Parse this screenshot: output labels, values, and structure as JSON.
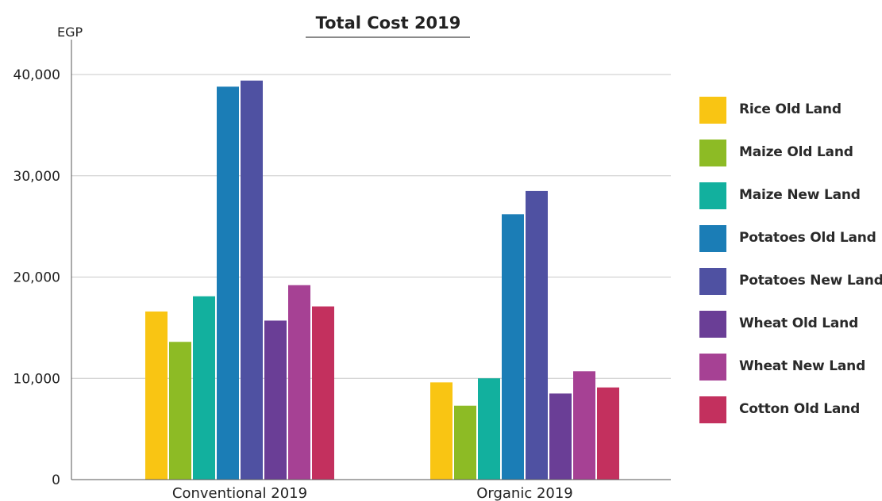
{
  "chart_data": {
    "type": "bar",
    "title": "Total Cost 2019",
    "ylabel": "EGP",
    "xlabel": "",
    "ylim": [
      0,
      40000
    ],
    "yticks": [
      0,
      10000,
      20000,
      30000,
      40000
    ],
    "ytick_labels": [
      "0",
      "10,000",
      "20,000",
      "30,000",
      "40,000"
    ],
    "grid": true,
    "legend_position": "right",
    "categories": [
      "Conventional 2019",
      "Organic 2019"
    ],
    "series": [
      {
        "name": "Rice Old Land",
        "color": "#F9C513",
        "values": [
          16600,
          9600
        ]
      },
      {
        "name": "Maize Old Land",
        "color": "#8DBB25",
        "values": [
          13600,
          7300
        ]
      },
      {
        "name": "Maize New Land",
        "color": "#12B09E",
        "values": [
          18100,
          10000
        ]
      },
      {
        "name": "Potatoes Old Land",
        "color": "#1B7DB6",
        "values": [
          38800,
          26200
        ]
      },
      {
        "name": "Potatoes New Land",
        "color": "#4F51A2",
        "values": [
          39400,
          28500
        ]
      },
      {
        "name": "Wheat Old Land",
        "color": "#6A3E96",
        "values": [
          15700,
          8500
        ]
      },
      {
        "name": "Wheat New Land",
        "color": "#A64194",
        "values": [
          19200,
          10700
        ]
      },
      {
        "name": "Cotton Old Land",
        "color": "#C3305E",
        "values": [
          17100,
          9100
        ]
      }
    ]
  }
}
